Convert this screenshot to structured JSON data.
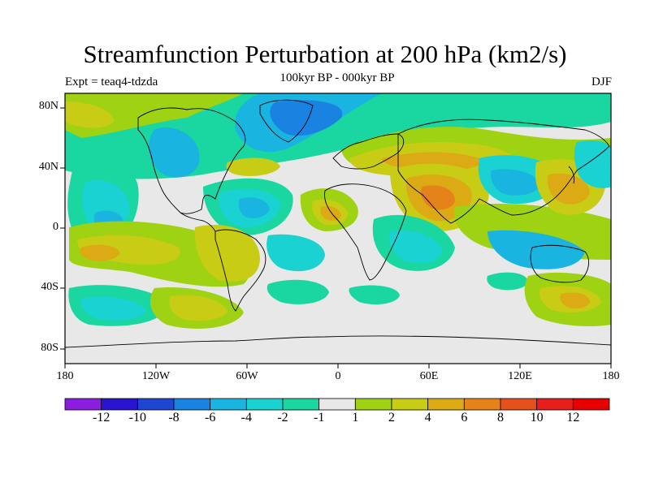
{
  "title": "Streamfunction Perturbation at 200 hPa (km2/s)",
  "subtitle": "100kyr BP - 000kyr BP",
  "left_label": "Expt = teaq4-tdzda",
  "right_label": "DJF",
  "axes": {
    "lat_labels": [
      "80N",
      "40N",
      "0",
      "40S",
      "80S"
    ],
    "lon_labels": [
      "180",
      "120W",
      "60W",
      "0",
      "60E",
      "120E",
      "180"
    ]
  },
  "colorbar": {
    "labels": [
      "-12",
      "-10",
      "-8",
      "-6",
      "-4",
      "-2",
      "-1",
      "1",
      "2",
      "4",
      "6",
      "8",
      "10",
      "12"
    ],
    "colors": [
      "#8a1ee0",
      "#2a14d2",
      "#1e46d2",
      "#1a82e0",
      "#1ab4e0",
      "#1ad2d2",
      "#1ad6a0",
      "#e8e8e8",
      "#a0d214",
      "#c8cc14",
      "#dcaa14",
      "#e6821a",
      "#e6501a",
      "#e61e1e",
      "#e60000"
    ]
  },
  "colors": {
    "background_field": "#e8e8e8",
    "land_outline": "#000000"
  }
}
